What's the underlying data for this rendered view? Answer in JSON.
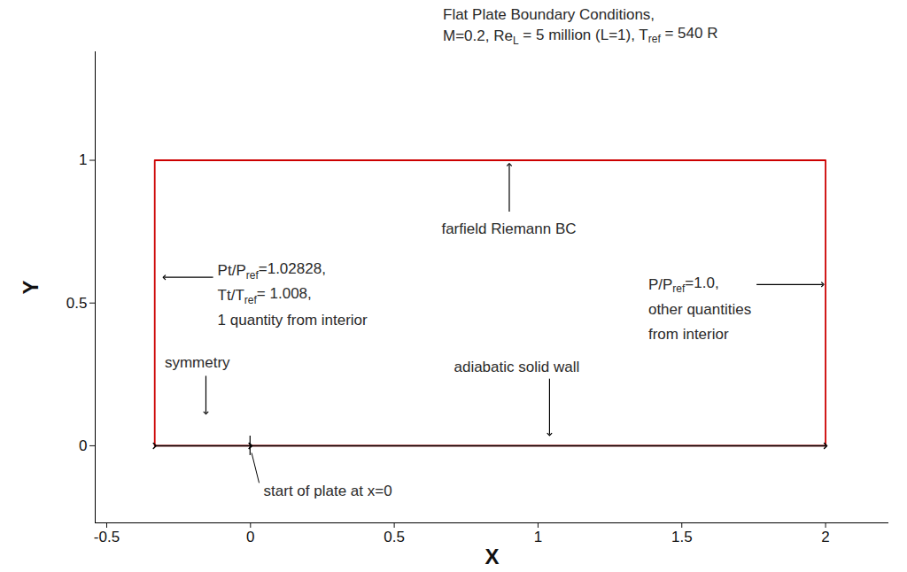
{
  "chart_data": {
    "type": "line",
    "title": [
      "Flat Plate Boundary Conditions,",
      [
        {
          "text": "M=0.2, Re"
        },
        {
          "text": "L",
          "sub": true
        },
        {
          "text": " = 5 million (L=1), T"
        },
        {
          "text": "ref",
          "sub": true
        },
        {
          "text": " = 540 R"
        }
      ]
    ],
    "x_label": "X",
    "y_label": "Y",
    "xlim": [
      -0.54,
      2.22
    ],
    "ylim": [
      -0.27,
      1.38
    ],
    "xticks": [
      -0.5,
      0,
      0.5,
      1,
      1.5,
      2
    ],
    "yticks": [
      0,
      0.5,
      1
    ],
    "series": [
      {
        "x": [
          -0.333,
          2,
          2,
          -0.333,
          -0.333
        ],
        "y": [
          0,
          0,
          1,
          1,
          0
        ],
        "color": "#cc0000",
        "line_style": "solid"
      },
      {
        "x": [
          -0.333,
          0
        ],
        "y": [
          0,
          0
        ],
        "color": "#000000",
        "marker": "arrow"
      },
      {
        "x": [
          0,
          2
        ],
        "y": [
          0,
          0
        ],
        "color": "#000000",
        "marker": "arrow"
      }
    ],
    "annotations": [
      {
        "lines": [
          "farfield Riemann BC"
        ],
        "x": 0.9,
        "y": 0.76,
        "anchor": "middle",
        "arrow": [
          0.9,
          0.82,
          0.9,
          0.985
        ]
      },
      {
        "lines": [
          [
            {
              "text": "Pt/P"
            },
            {
              "text": "ref",
              "sub": true
            },
            {
              "text": "=1.02828,"
            }
          ],
          [
            {
              "text": "Tt/T"
            },
            {
              "text": "ref",
              "sub": true
            },
            {
              "text": "= 1.008,"
            }
          ],
          "1 quantity from interior"
        ],
        "x": -0.113,
        "y": 0.614,
        "anchor": "start",
        "arrow": [
          -0.13,
          0.59,
          -0.3,
          0.59
        ]
      },
      {
        "lines": [
          [
            {
              "text": "P/P"
            },
            {
              "text": "ref",
              "sub": true
            },
            {
              "text": "=1.0,"
            }
          ],
          "other quantities",
          "from interior"
        ],
        "x": 1.385,
        "y": 0.565,
        "anchor": "start",
        "arrow": [
          1.76,
          0.565,
          1.99,
          0.565
        ]
      },
      {
        "lines": [
          "symmetry"
        ],
        "x": -0.297,
        "y": 0.29,
        "anchor": "start",
        "arrow": [
          -0.155,
          0.245,
          -0.155,
          0.115
        ]
      },
      {
        "lines": [
          "adiabatic solid wall"
        ],
        "x": 0.709,
        "y": 0.275,
        "anchor": "start",
        "arrow": [
          1.04,
          0.235,
          1.04,
          0.04
        ]
      },
      {
        "lines": [
          "start of plate at x=0"
        ],
        "x": 0.047,
        "y": -0.157,
        "anchor": "start",
        "leader": [
          0.03,
          -0.13,
          0.004,
          -0.025
        ]
      }
    ]
  }
}
